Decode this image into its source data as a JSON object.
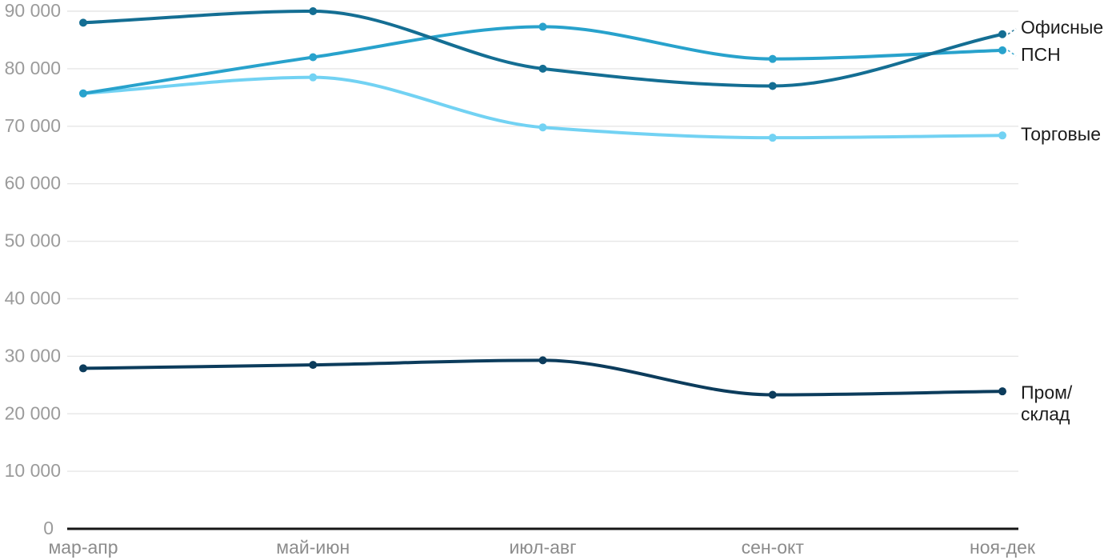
{
  "chart_data": {
    "type": "line",
    "title": "",
    "xlabel": "",
    "ylabel": "",
    "categories": [
      "мар-апр",
      "май-июн",
      "июл-авг",
      "сен-окт",
      "ноя-дек"
    ],
    "series": [
      {
        "id": "ofisnye",
        "name": "Офисные",
        "label_lines": [
          "Офисные"
        ],
        "color": "#146e93",
        "values": [
          88000,
          90000,
          80000,
          77000,
          86000
        ]
      },
      {
        "id": "psn",
        "name": "ПСН",
        "label_lines": [
          "ПСН"
        ],
        "color": "#28a2cc",
        "values": [
          75700,
          82000,
          87300,
          81700,
          83200
        ]
      },
      {
        "id": "torgovye",
        "name": "Торговые",
        "label_lines": [
          "Торговые"
        ],
        "color": "#72d2f3",
        "values": [
          75700,
          78500,
          69800,
          68000,
          68400
        ]
      },
      {
        "id": "prom-sklad",
        "name": "Пром/склад",
        "label_lines": [
          "Пром/",
          "склад"
        ],
        "color": "#0c3c5c",
        "values": [
          27900,
          28500,
          29300,
          23300,
          23900
        ]
      }
    ],
    "y_axis": {
      "min": 0,
      "max": 90000,
      "step": 10000,
      "tick_labels": [
        "0",
        "10 000",
        "20 000",
        "30 000",
        "40 000",
        "50 000",
        "60 000",
        "70 000",
        "80 000",
        "90 000"
      ]
    },
    "grid": true,
    "curve": "monotone",
    "legend_position": "right-of-line-ends",
    "colors": {
      "background": "#ffffff",
      "grid": "#e6e6e6",
      "axis": "#161616",
      "y_tick_text": "#9b9b9b",
      "x_tick_text": "#8c8c8c",
      "series_label_text": "#1c1c1c"
    }
  }
}
